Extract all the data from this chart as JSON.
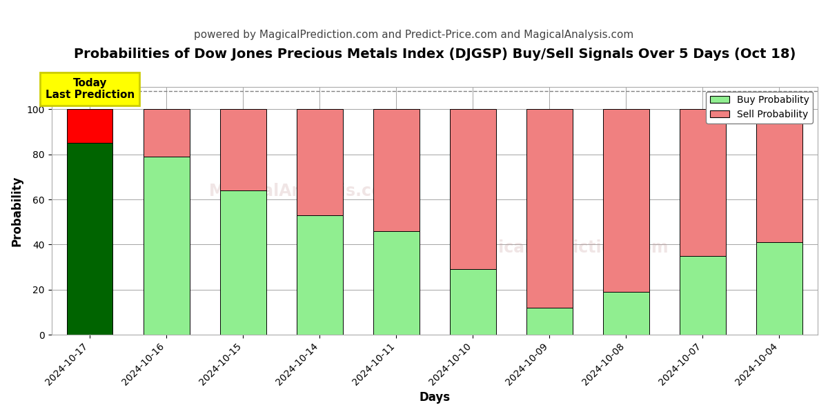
{
  "title": "Probabilities of Dow Jones Precious Metals Index (DJGSP) Buy/Sell Signals Over 5 Days (Oct 18)",
  "subtitle": "powered by MagicalPrediction.com and Predict-Price.com and MagicalAnalysis.com",
  "xlabel": "Days",
  "ylabel": "Probability",
  "days": [
    "2024-10-17",
    "2024-10-16",
    "2024-10-15",
    "2024-10-14",
    "2024-10-11",
    "2024-10-10",
    "2024-10-09",
    "2024-10-08",
    "2024-10-07",
    "2024-10-04"
  ],
  "buy_values": [
    85,
    79,
    64,
    53,
    46,
    29,
    12,
    19,
    35,
    41
  ],
  "sell_values": [
    15,
    21,
    36,
    47,
    54,
    71,
    88,
    81,
    65,
    59
  ],
  "today_buy_color": "#006400",
  "today_sell_color": "#ff0000",
  "other_buy_color": "#90EE90",
  "other_sell_color": "#F08080",
  "bar_edge_color": "#000000",
  "ylim": [
    0,
    110
  ],
  "yticks": [
    0,
    20,
    40,
    60,
    80,
    100
  ],
  "dashed_line_y": 108,
  "annotation_text": "Today\nLast Prediction",
  "annotation_bg": "#ffff00",
  "annotation_edge": "#cccc00",
  "legend_buy_label": "Buy Probability",
  "legend_sell_label": "Sell Probability",
  "title_fontsize": 14,
  "subtitle_fontsize": 11,
  "axis_label_fontsize": 12,
  "tick_fontsize": 10,
  "figsize": [
    12,
    6
  ],
  "dpi": 100,
  "watermark_lines": [
    "MagicalAnalysis.com",
    "MagicalPrediction.com"
  ],
  "watermark_color": [
    0.75,
    0.55,
    0.55
  ],
  "watermark_alpha": 0.22
}
